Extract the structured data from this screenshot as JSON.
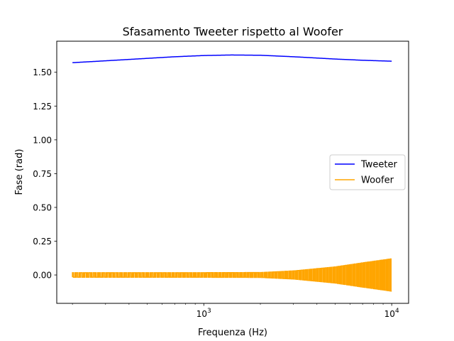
{
  "chart_data": {
    "type": "line",
    "title": "Sfasamento Tweeter rispetto al Woofer",
    "xlabel": "Frequenza (Hz)",
    "ylabel": "Fase (rad)",
    "xscale": "log",
    "xlim": [
      165,
      12300
    ],
    "ylim": [
      -0.21,
      1.73
    ],
    "x_ticks": [
      {
        "value": 1000,
        "base": "10",
        "exp": "3"
      },
      {
        "value": 10000,
        "base": "10",
        "exp": "4"
      }
    ],
    "y_ticks": [
      {
        "value": 0.0,
        "label": "0.00"
      },
      {
        "value": 0.25,
        "label": "0.25"
      },
      {
        "value": 0.5,
        "label": "0.50"
      },
      {
        "value": 0.75,
        "label": "0.75"
      },
      {
        "value": 1.0,
        "label": "1.00"
      },
      {
        "value": 1.25,
        "label": "1.25"
      },
      {
        "value": 1.5,
        "label": "1.50"
      }
    ],
    "grid": false,
    "legend_position": "center-right",
    "series": [
      {
        "name": "Tweeter",
        "color": "#0000ff",
        "x": [
          200,
          300,
          500,
          700,
          1000,
          1400,
          2000,
          3000,
          5000,
          7000,
          10000
        ],
        "y": [
          1.571,
          1.585,
          1.603,
          1.615,
          1.624,
          1.628,
          1.626,
          1.615,
          1.598,
          1.589,
          1.582
        ]
      },
      {
        "name": "Woofer",
        "color": "#ffa500",
        "x_range": [
          200,
          10000
        ],
        "oscillation_envelope": {
          "x": [
            200,
            1000,
            2000,
            3000,
            5000,
            7000,
            10000
          ],
          "amplitude": [
            0.017,
            0.017,
            0.018,
            0.03,
            0.06,
            0.09,
            0.12
          ]
        }
      }
    ]
  }
}
